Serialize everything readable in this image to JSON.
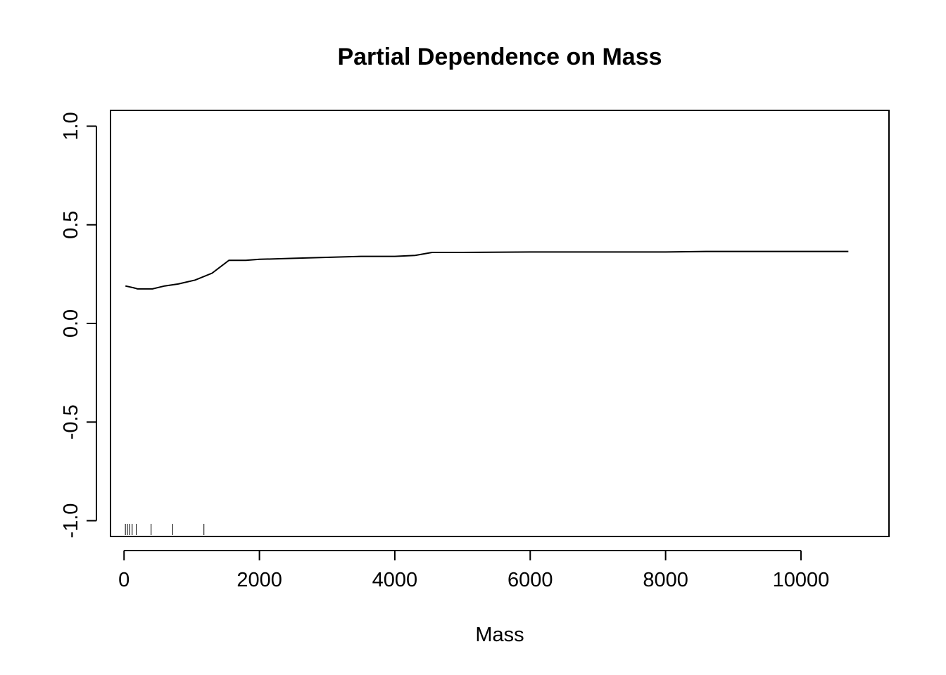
{
  "chart_data": {
    "type": "line",
    "title": "Partial Dependence on Mass",
    "xlabel": "Mass",
    "ylabel": "",
    "xlim": [
      -200,
      11300
    ],
    "ylim": [
      -1.08,
      1.08
    ],
    "x_ticks": [
      0,
      2000,
      4000,
      6000,
      8000,
      10000
    ],
    "x_tick_labels": [
      "0",
      "2000",
      "4000",
      "6000",
      "8000",
      "10000"
    ],
    "y_ticks": [
      -1.0,
      -0.5,
      0.0,
      0.5,
      1.0
    ],
    "y_tick_labels": [
      "-1.0",
      "-0.5",
      "0.0",
      "0.5",
      "1.0"
    ],
    "grid": false,
    "legend": "none",
    "line_color": "#000000",
    "series": [
      {
        "x": [
          20,
          150,
          200,
          420,
          600,
          800,
          1050,
          1300,
          1550,
          1800,
          2000,
          2500,
          3000,
          3500,
          4000,
          4300,
          4550,
          5000,
          6000,
          7000,
          8000,
          8600,
          9000,
          10000,
          10700
        ],
        "y": [
          0.19,
          0.18,
          0.175,
          0.175,
          0.19,
          0.2,
          0.22,
          0.255,
          0.32,
          0.32,
          0.325,
          0.33,
          0.335,
          0.34,
          0.34,
          0.345,
          0.36,
          0.36,
          0.362,
          0.362,
          0.362,
          0.365,
          0.365,
          0.365,
          0.365
        ]
      }
    ],
    "rug": [
      20,
      50,
      80,
      120,
      180,
      400,
      720,
      1180
    ]
  }
}
